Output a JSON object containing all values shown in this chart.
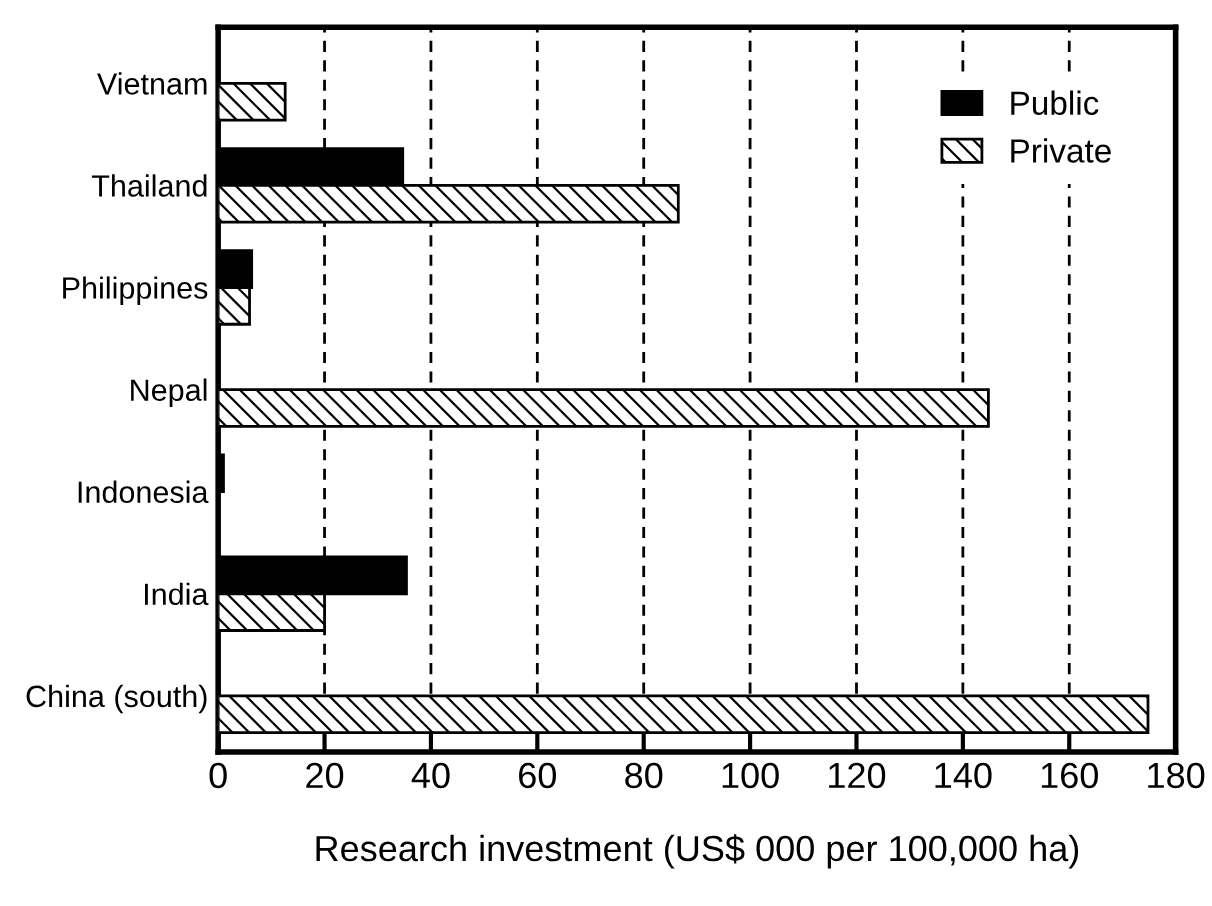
{
  "chart_data": {
    "type": "bar",
    "orientation": "horizontal",
    "xlabel": "Research investment (US$ 000 per 100,000 ha)",
    "categories": [
      "Vietnam",
      "Thailand",
      "Philippines",
      "Nepal",
      "Indonesia",
      "India",
      "China (south)"
    ],
    "series": [
      {
        "name": "Public",
        "color": "#000000",
        "values": [
          null,
          34.7,
          6.3,
          null,
          1,
          35.4,
          null
        ]
      },
      {
        "name": "Private",
        "color": "#000000",
        "values": [
          12.6,
          86.5,
          5.9,
          144.8,
          null,
          20,
          174.8
        ]
      }
    ],
    "xlim": [
      0,
      180
    ],
    "xticks": [
      0,
      20,
      40,
      60,
      80,
      100,
      120,
      140,
      160,
      180
    ],
    "grid": "x",
    "legend": "top right"
  }
}
